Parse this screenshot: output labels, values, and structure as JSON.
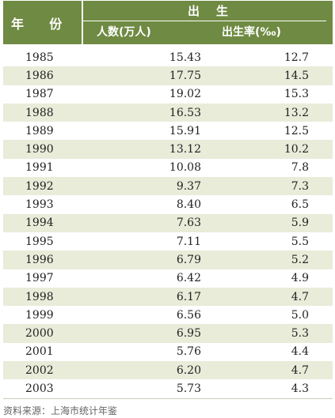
{
  "header": {
    "year_label": "年    份",
    "group_label": "出    生",
    "col_births": "人数(万人)",
    "col_rate": "出生率(‰)"
  },
  "rows": [
    {
      "year": "1985",
      "births": "15.43",
      "rate": "12.7"
    },
    {
      "year": "1986",
      "births": "17.75",
      "rate": "14.5"
    },
    {
      "year": "1987",
      "births": "19.02",
      "rate": "15.3"
    },
    {
      "year": "1988",
      "births": "16.53",
      "rate": "13.2"
    },
    {
      "year": "1989",
      "births": "15.91",
      "rate": "12.5"
    },
    {
      "year": "1990",
      "births": "13.12",
      "rate": "10.2"
    },
    {
      "year": "1991",
      "births": "10.08",
      "rate": "7.8"
    },
    {
      "year": "1992",
      "births": "9.37",
      "rate": "7.3"
    },
    {
      "year": "1993",
      "births": "8.40",
      "rate": "6.5"
    },
    {
      "year": "1994",
      "births": "7.63",
      "rate": "5.9"
    },
    {
      "year": "1995",
      "births": "7.11",
      "rate": "5.5"
    },
    {
      "year": "1996",
      "births": "6.79",
      "rate": "5.2"
    },
    {
      "year": "1997",
      "births": "6.42",
      "rate": "4.9"
    },
    {
      "year": "1998",
      "births": "6.17",
      "rate": "4.7"
    },
    {
      "year": "1999",
      "births": "6.56",
      "rate": "5.0"
    },
    {
      "year": "2000",
      "births": "6.95",
      "rate": "5.3"
    },
    {
      "year": "2001",
      "births": "5.76",
      "rate": "4.4"
    },
    {
      "year": "2002",
      "births": "6.20",
      "rate": "4.7"
    },
    {
      "year": "2003",
      "births": "5.73",
      "rate": "4.3"
    }
  ],
  "source": "资料来源：上海市统计年鉴",
  "colors": {
    "header_bg": "#6f8a42",
    "row_stripe": "#e8ecd9"
  }
}
